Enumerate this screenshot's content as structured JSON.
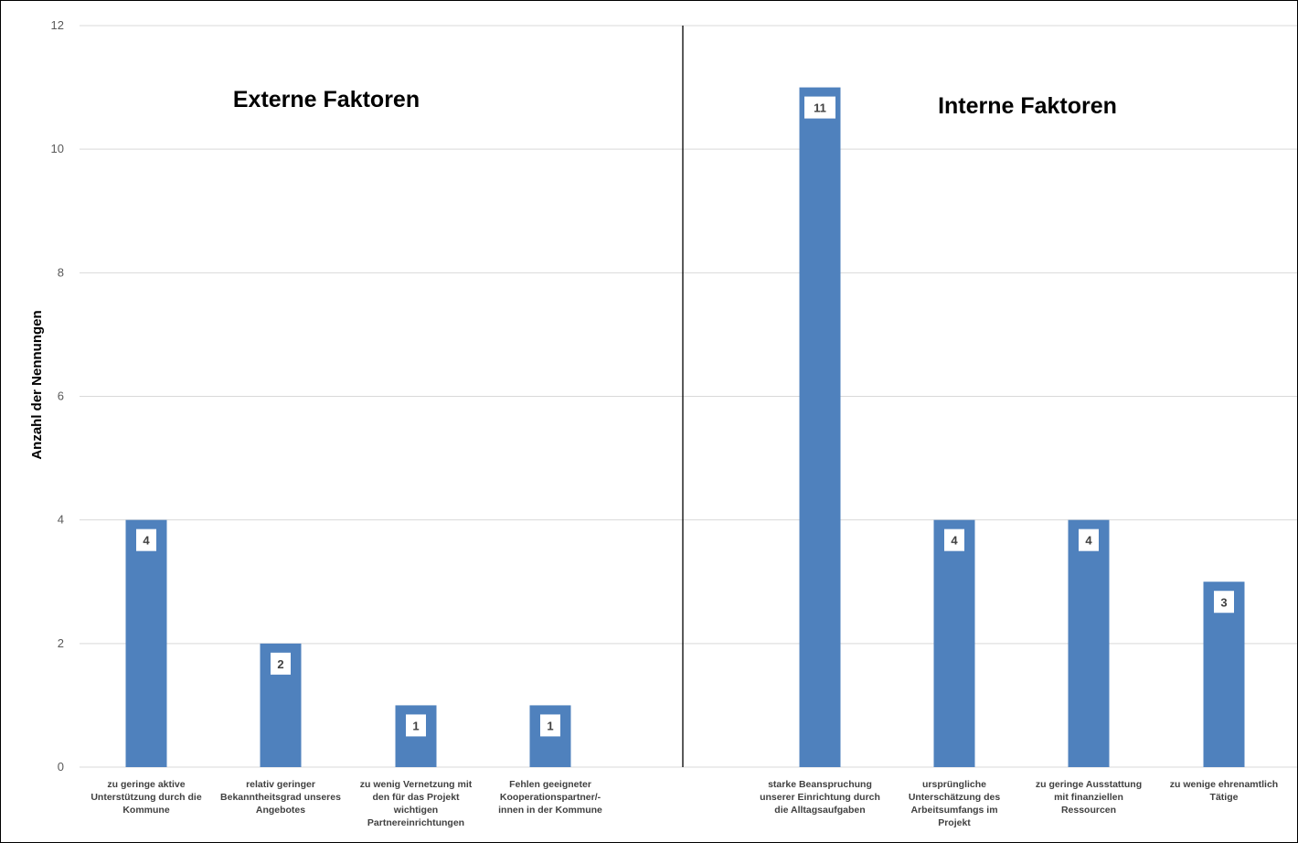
{
  "chart_data": {
    "type": "bar",
    "ylabel": "Anzahl der Nennungen",
    "xlabel": "",
    "ylim": [
      0,
      12
    ],
    "yticks": [
      0,
      2,
      4,
      6,
      8,
      10,
      12
    ],
    "grid": true,
    "bar_color": "#4f81bd",
    "groups": [
      {
        "title": "Externe Faktoren",
        "categories": [
          [
            "zu geringe aktive",
            "Unterstützung durch die",
            "Kommune"
          ],
          [
            "relativ geringer",
            "Bekanntheitsgrad unseres",
            "Angebotes"
          ],
          [
            "zu wenig Vernetzung mit",
            "den für das Projekt",
            "wichtigen",
            "Partnereinrichtungen"
          ],
          [
            "Fehlen geeigneter",
            "Kooperationspartner/-",
            "innen in der Kommune"
          ]
        ],
        "values": [
          4,
          2,
          1,
          1
        ]
      },
      {
        "title": "Interne Faktoren",
        "categories": [
          [
            "starke Beanspruchung",
            "unserer Einrichtung durch",
            "die Alltagsaufgaben"
          ],
          [
            "ursprüngliche",
            "Unterschätzung des",
            "Arbeitsumfangs im",
            "Projekt"
          ],
          [
            "zu geringe Ausstattung",
            "mit finanziellen",
            "Ressourcen"
          ],
          [
            "zu wenige ehrenamtlich",
            "Tätige"
          ]
        ],
        "values": [
          11,
          4,
          4,
          3
        ]
      }
    ]
  }
}
